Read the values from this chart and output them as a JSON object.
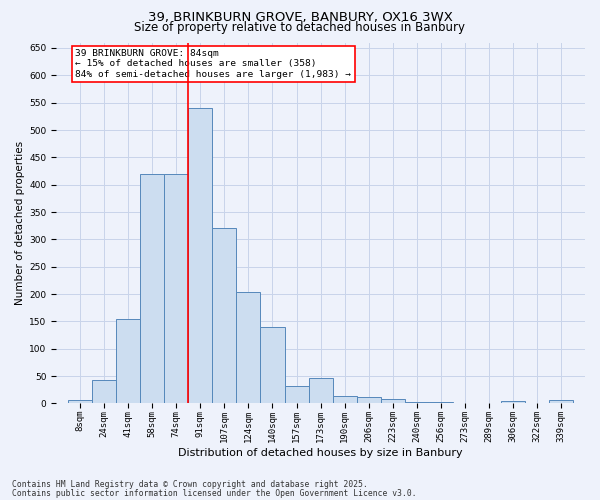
{
  "title1": "39, BRINKBURN GROVE, BANBURY, OX16 3WX",
  "title2": "Size of property relative to detached houses in Banbury",
  "xlabel": "Distribution of detached houses by size in Banbury",
  "ylabel": "Number of detached properties",
  "categories": [
    "8sqm",
    "24sqm",
    "41sqm",
    "58sqm",
    "74sqm",
    "91sqm",
    "107sqm",
    "124sqm",
    "140sqm",
    "157sqm",
    "173sqm",
    "190sqm",
    "206sqm",
    "223sqm",
    "240sqm",
    "256sqm",
    "273sqm",
    "289sqm",
    "306sqm",
    "322sqm",
    "339sqm"
  ],
  "values": [
    7,
    43,
    155,
    420,
    420,
    540,
    320,
    203,
    140,
    32,
    47,
    14,
    12,
    9,
    3,
    3,
    0,
    0,
    5,
    0,
    6
  ],
  "bar_color": "#ccddf0",
  "bar_edge_color": "#5588bb",
  "ref_line_color": "red",
  "ref_line_bin_index": 5,
  "annotation_text": "39 BRINKBURN GROVE: 84sqm\n← 15% of detached houses are smaller (358)\n84% of semi-detached houses are larger (1,983) →",
  "annotation_box_color": "white",
  "annotation_box_edge": "red",
  "ylim": [
    0,
    660
  ],
  "yticks": [
    0,
    50,
    100,
    150,
    200,
    250,
    300,
    350,
    400,
    450,
    500,
    550,
    600,
    650
  ],
  "footer1": "Contains HM Land Registry data © Crown copyright and database right 2025.",
  "footer2": "Contains public sector information licensed under the Open Government Licence v3.0.",
  "bg_color": "#eef2fb",
  "grid_color": "#c8d4ea",
  "title1_fontsize": 9.5,
  "title2_fontsize": 8.5,
  "ylabel_fontsize": 7.5,
  "xlabel_fontsize": 8,
  "tick_fontsize": 6.5,
  "annot_fontsize": 6.8,
  "footer_fontsize": 5.8
}
